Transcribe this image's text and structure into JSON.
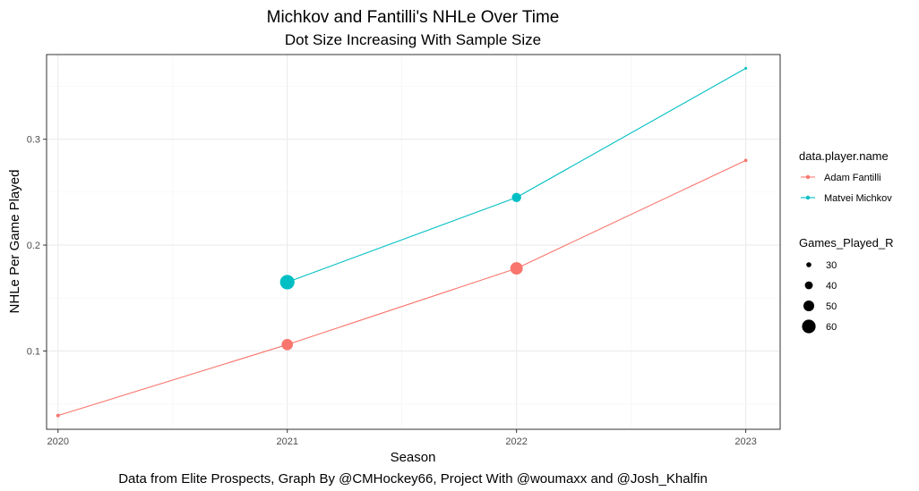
{
  "chart_data": {
    "type": "line",
    "title": "Michkov and Fantilli's NHLe Over Time",
    "subtitle": "Dot Size Increasing With Sample Size",
    "caption": "Data from Elite Prospects, Graph By @CMHockey66, Project With @woumaxx and @Josh_Khalfin",
    "xlabel": "Season",
    "ylabel": "NHLe Per Game Played",
    "xlim": [
      2019.95,
      2023.15
    ],
    "ylim": [
      0.026,
      0.38
    ],
    "x_ticks": [
      2020,
      2021,
      2022,
      2023
    ],
    "y_ticks": [
      0.1,
      0.2,
      0.3
    ],
    "grid": true,
    "legend_placement": "right",
    "color_legend_title": "data.player.name",
    "size_legend_title": "Games_Played_R",
    "size_legend": [
      {
        "label": "30",
        "value": 30
      },
      {
        "label": "40",
        "value": 40
      },
      {
        "label": "50",
        "value": 50
      },
      {
        "label": "60",
        "value": 60
      }
    ],
    "series": [
      {
        "name": "Adam Fantilli",
        "color": "#F8766D",
        "points": [
          {
            "x": 2020,
            "y": 0.039,
            "games": 25
          },
          {
            "x": 2021,
            "y": 0.106,
            "games": 52
          },
          {
            "x": 2022,
            "y": 0.178,
            "games": 56
          },
          {
            "x": 2023,
            "y": 0.28,
            "games": 24
          }
        ]
      },
      {
        "name": "Matvei Michkov",
        "color": "#00BFC4",
        "points": [
          {
            "x": 2021,
            "y": 0.165,
            "games": 63
          },
          {
            "x": 2022,
            "y": 0.245,
            "games": 45
          },
          {
            "x": 2023,
            "y": 0.367,
            "games": 22
          }
        ]
      }
    ]
  }
}
